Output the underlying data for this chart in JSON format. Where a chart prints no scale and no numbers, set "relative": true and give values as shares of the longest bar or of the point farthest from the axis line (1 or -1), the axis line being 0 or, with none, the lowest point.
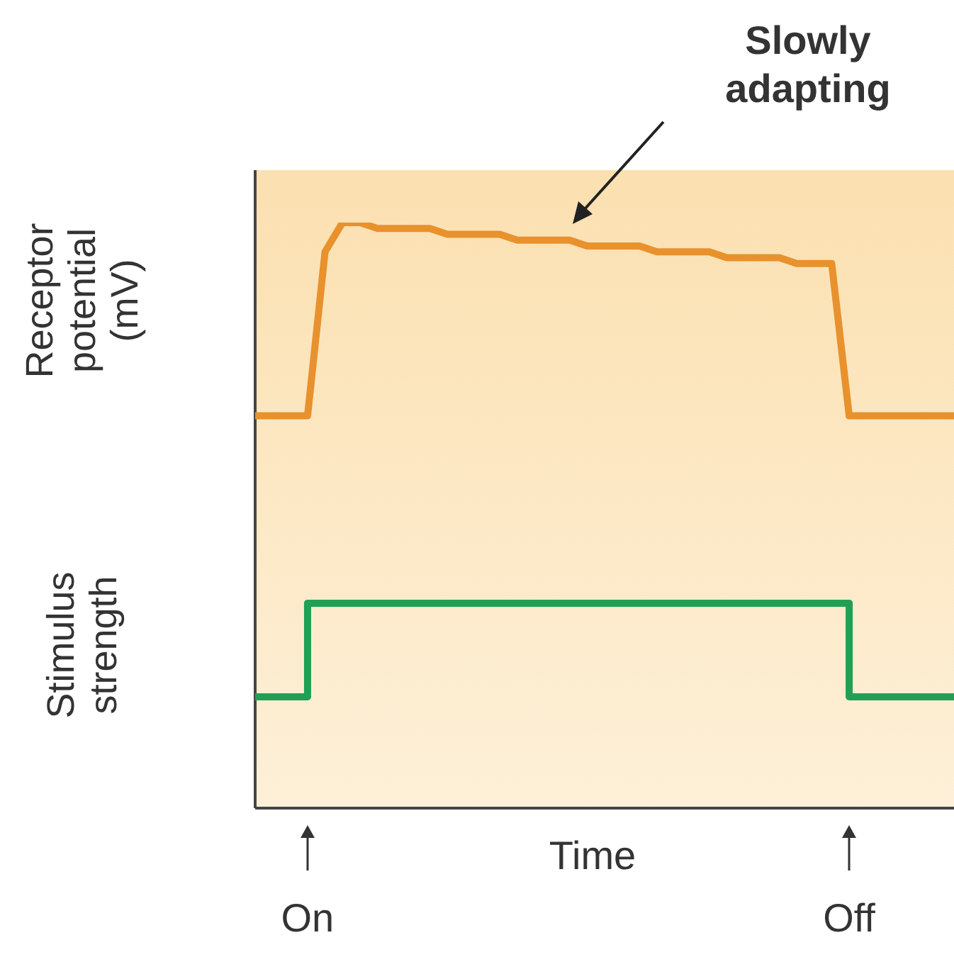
{
  "chart_data": {
    "type": "line",
    "relative": true,
    "ylabel": "Receptor potential (mV)",
    "xlabel": "Time",
    "annotations": [
      "Slowly adapting",
      "Stimulus strength",
      "On",
      "Off"
    ],
    "categories": [
      null,
      null,
      null,
      null,
      null,
      null,
      null,
      null,
      null,
      null,
      null,
      null,
      null,
      null,
      null,
      null,
      null,
      null,
      null,
      null,
      null,
      null,
      null,
      null,
      null,
      null,
      null,
      null,
      null,
      null,
      null,
      null,
      null,
      null,
      null,
      null,
      null,
      null,
      null,
      null,
      null
    ],
    "series": [
      {
        "color": "#e8912d",
        "values": [
          0.67,
          0.67,
          0.67,
          0.67,
          0.95,
          1,
          1,
          0.99,
          0.99,
          0.99,
          0.99,
          0.98,
          0.98,
          0.98,
          0.98,
          0.97,
          0.97,
          0.97,
          0.97,
          0.96,
          0.96,
          0.96,
          0.96,
          0.95,
          0.95,
          0.95,
          0.95,
          0.94,
          0.94,
          0.94,
          0.94,
          0.93,
          0.93,
          0.93,
          0.67,
          0.67,
          0.67,
          0.67,
          0.67,
          0.67,
          0.67
        ]
      },
      {
        "type": "step",
        "color": "#1fa055",
        "values": [
          0.19,
          0.19,
          0.19,
          0.35,
          0.35,
          0.35,
          0.35,
          0.35,
          0.35,
          0.35,
          0.35,
          0.35,
          0.35,
          0.35,
          0.35,
          0.35,
          0.35,
          0.35,
          0.35,
          0.35,
          0.35,
          0.35,
          0.35,
          0.35,
          0.35,
          0.35,
          0.35,
          0.35,
          0.35,
          0.35,
          0.35,
          0.35,
          0.35,
          0.35,
          0.19,
          0.19,
          0.19,
          0.19,
          0.19,
          0.19,
          0.19
        ]
      }
    ]
  }
}
